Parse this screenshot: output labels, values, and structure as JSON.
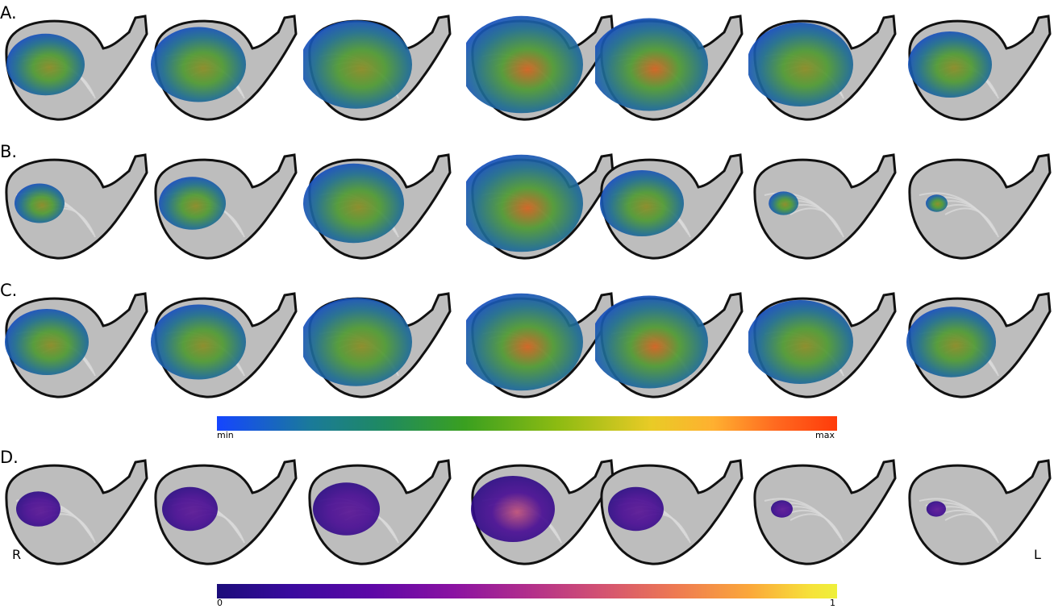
{
  "panels": [
    {
      "label": "A.",
      "overlay": "jet",
      "extent": [
        0.55,
        0.7,
        0.85,
        0.95,
        0.9,
        0.8,
        0.6
      ]
    },
    {
      "label": "B.",
      "overlay": "jet",
      "extent": [
        0.3,
        0.45,
        0.75,
        0.95,
        0.6,
        0.12,
        0.05
      ]
    },
    {
      "label": "C.",
      "overlay": "jet",
      "extent": [
        0.6,
        0.7,
        0.85,
        0.95,
        0.9,
        0.8,
        0.65
      ]
    },
    {
      "label": "D.",
      "overlay": "plasma",
      "extent": [
        0.25,
        0.35,
        0.45,
        0.6,
        0.35,
        0.05,
        0.03
      ]
    }
  ],
  "colorbars": [
    {
      "name": "jet",
      "min_label": "min",
      "max_label": "max"
    },
    {
      "name": "plasma",
      "min_label": "0",
      "max_label": "1"
    }
  ],
  "orientation": {
    "right": "R",
    "left": "L"
  },
  "colors": {
    "brain": "#bdbdbd",
    "outline": "#111111"
  }
}
